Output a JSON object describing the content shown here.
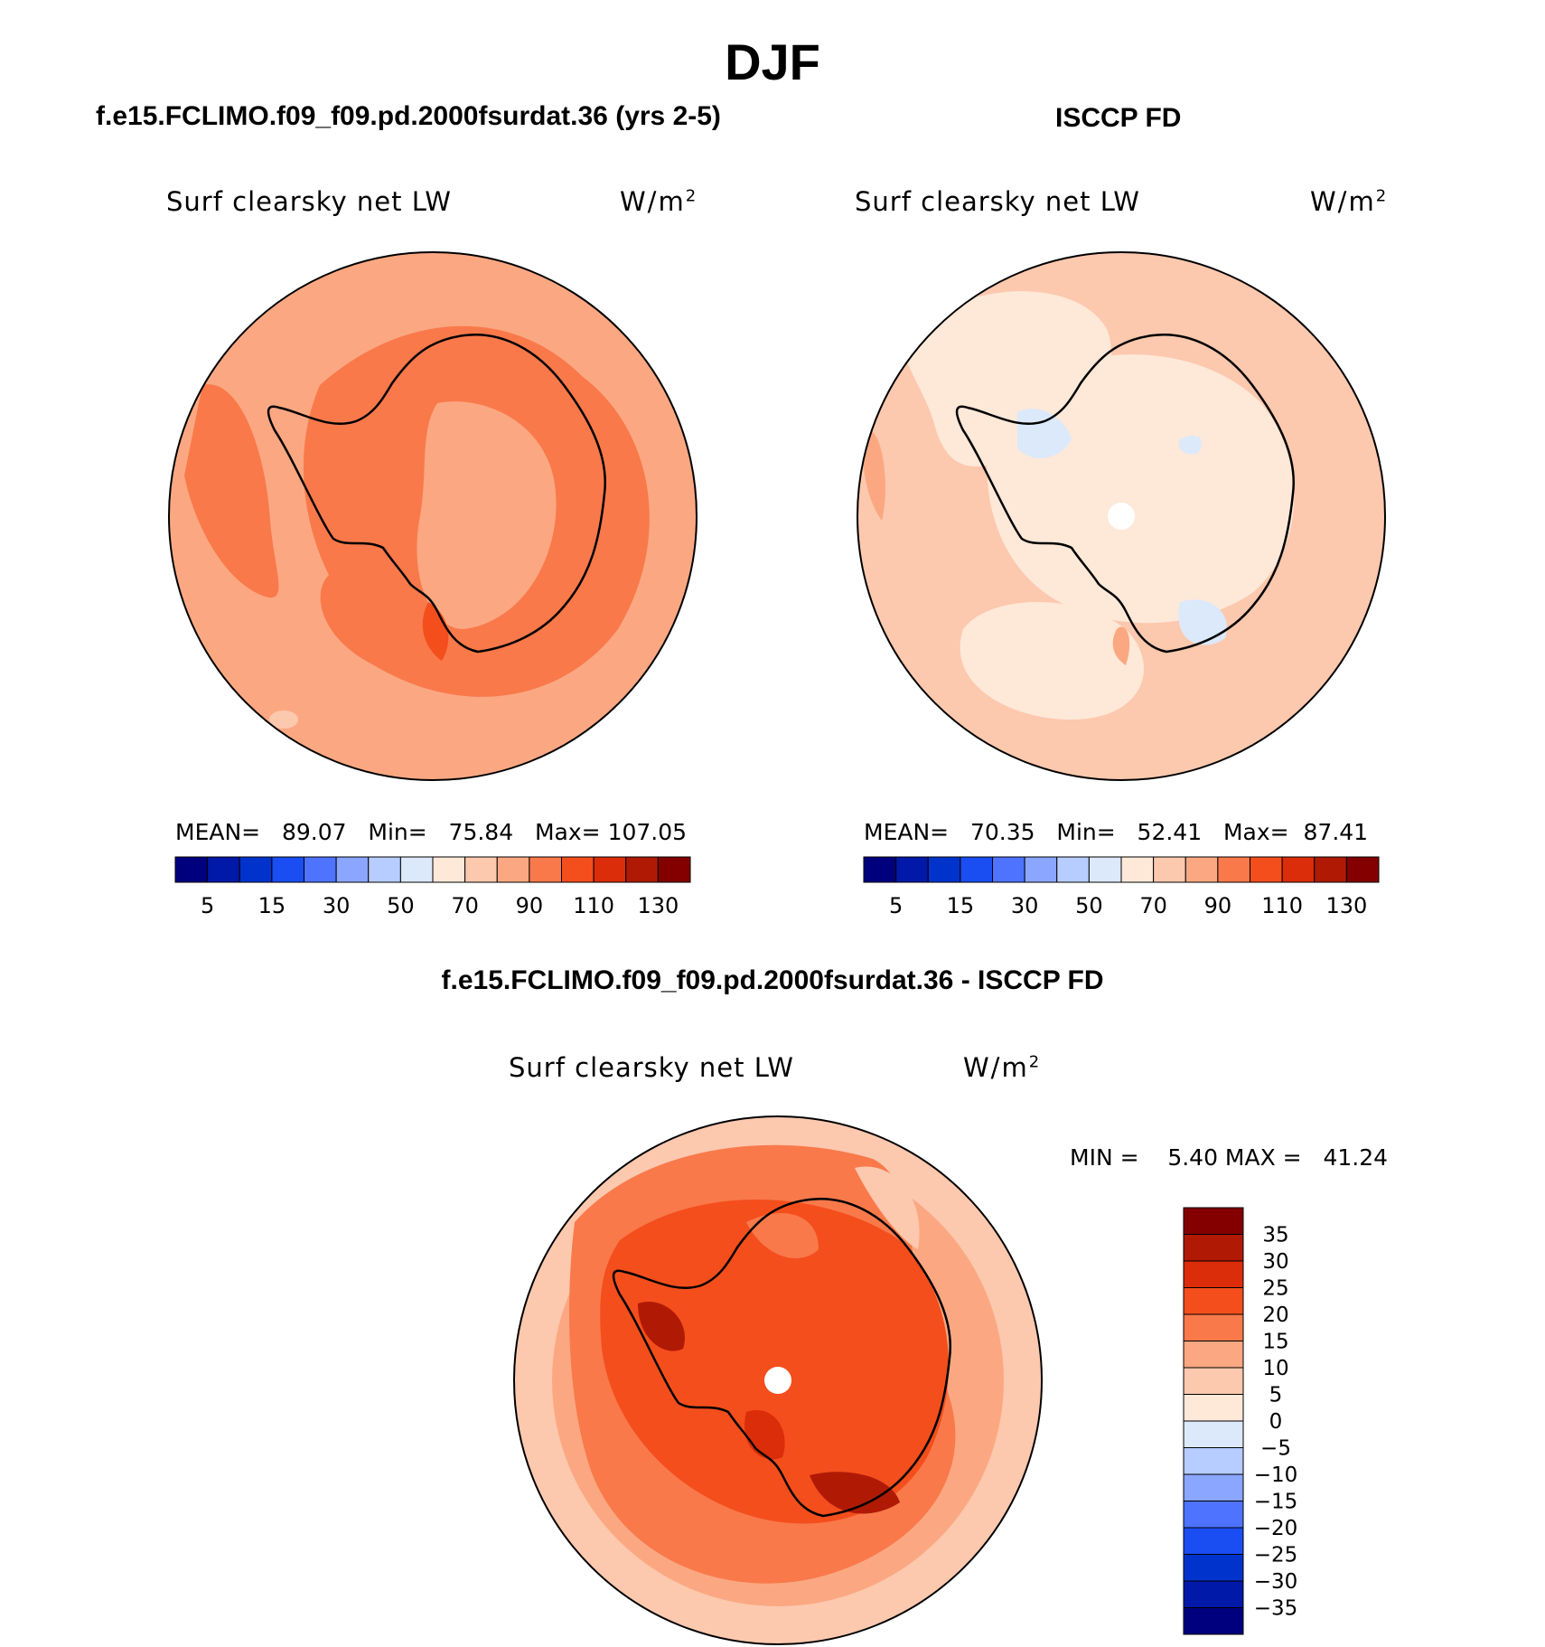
{
  "title": "DJF",
  "panels": {
    "model": {
      "heading": "f.e15.FCLIMO.f09_f09.pd.2000fsurdat.36 (yrs 2-5)",
      "variable": "Surf clearsky net LW",
      "unit_base": "W/m",
      "unit_exp": "2",
      "mean_label": "MEAN=",
      "mean": "89.07",
      "min_label": "Min=",
      "min": "75.84",
      "max_label": "Max=",
      "max": "107.05"
    },
    "obs": {
      "heading": "ISCCP FD",
      "variable": "Surf clearsky net LW",
      "unit_base": "W/m",
      "unit_exp": "2",
      "mean_label": "MEAN=",
      "mean": "70.35",
      "min_label": "Min=",
      "min": "52.41",
      "max_label": "Max=",
      "max": "87.41"
    },
    "diff": {
      "heading": "f.e15.FCLIMO.f09_f09.pd.2000fsurdat.36 - ISCCP FD",
      "variable": "Surf clearsky net LW",
      "unit_base": "W/m",
      "unit_exp": "2",
      "minmax_label": "MIN =    5.40 MAX =   41.24"
    }
  },
  "chart_data": [
    {
      "type": "heatmap",
      "projection": "south polar stereographic",
      "title": "f.e15.FCLIMO.f09_f09.pd.2000fsurdat.36 (yrs 2-5)",
      "variable": "Surf clearsky net LW",
      "units": "W/m2",
      "stats": {
        "mean": 89.07,
        "min": 75.84,
        "max": 107.05
      },
      "colorbar": {
        "levels": [
          5,
          10,
          15,
          20,
          30,
          40,
          50,
          60,
          70,
          80,
          90,
          100,
          110,
          120,
          130
        ],
        "tick_labels": [
          "5",
          "15",
          "30",
          "50",
          "70",
          "90",
          "110",
          "130"
        ],
        "colors": [
          "#00007f",
          "#0019a8",
          "#0033cc",
          "#1a4df2",
          "#4d73ff",
          "#8aa6ff",
          "#b7ccff",
          "#dbe9fb",
          "#fee8d8",
          "#fcc8ae",
          "#fba882",
          "#f9794b",
          "#f44e1d",
          "#db2d0a",
          "#b01a05",
          "#840000"
        ]
      }
    },
    {
      "type": "heatmap",
      "projection": "south polar stereographic",
      "title": "ISCCP FD",
      "variable": "Surf clearsky net LW",
      "units": "W/m2",
      "stats": {
        "mean": 70.35,
        "min": 52.41,
        "max": 87.41
      },
      "colorbar": {
        "levels": [
          5,
          10,
          15,
          20,
          30,
          40,
          50,
          60,
          70,
          80,
          90,
          100,
          110,
          120,
          130
        ],
        "tick_labels": [
          "5",
          "15",
          "30",
          "50",
          "70",
          "90",
          "110",
          "130"
        ],
        "colors": [
          "#00007f",
          "#0019a8",
          "#0033cc",
          "#1a4df2",
          "#4d73ff",
          "#8aa6ff",
          "#b7ccff",
          "#dbe9fb",
          "#fee8d8",
          "#fcc8ae",
          "#fba882",
          "#f9794b",
          "#f44e1d",
          "#db2d0a",
          "#b01a05",
          "#840000"
        ]
      }
    },
    {
      "type": "heatmap",
      "projection": "south polar stereographic",
      "title": "f.e15.FCLIMO.f09_f09.pd.2000fsurdat.36 - ISCCP FD",
      "variable": "Surf clearsky net LW",
      "units": "W/m2",
      "stats": {
        "min": 5.4,
        "max": 41.24
      },
      "colorbar": {
        "orientation": "vertical",
        "levels": [
          35,
          30,
          25,
          20,
          15,
          10,
          5,
          0,
          -5,
          -10,
          -15,
          -20,
          -25,
          -30,
          -35
        ],
        "tick_labels": [
          "35",
          "30",
          "25",
          "20",
          "15",
          "10",
          "5",
          "0",
          "−5",
          "−10",
          "−15",
          "−20",
          "−25",
          "−30",
          "−35"
        ],
        "colors": [
          "#840000",
          "#b01a05",
          "#db2d0a",
          "#f44e1d",
          "#f9794b",
          "#fba882",
          "#fcc8ae",
          "#fee8d8",
          "#dbe9fb",
          "#b7ccff",
          "#8aa6ff",
          "#4d73ff",
          "#1a4df2",
          "#0033cc",
          "#0019a8",
          "#00007f"
        ]
      }
    }
  ]
}
